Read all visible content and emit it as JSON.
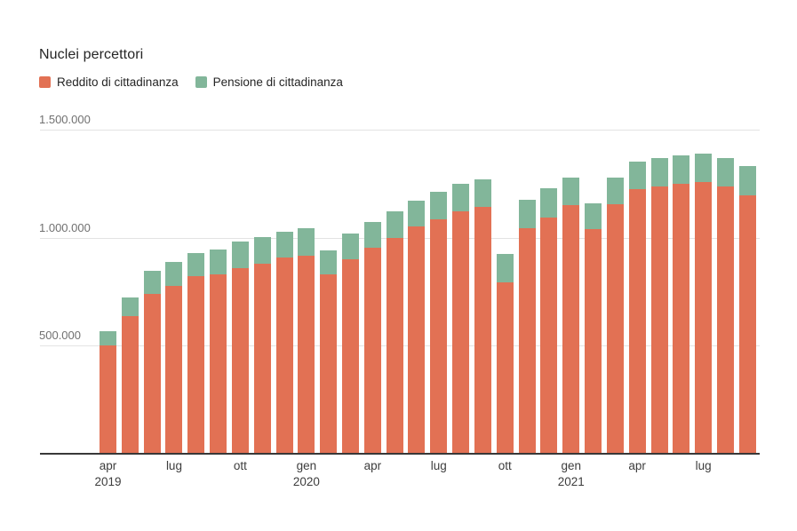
{
  "title": "Nuclei percettori",
  "legend": [
    {
      "label": "Reddito di cittadinanza",
      "color": "#E27154"
    },
    {
      "label": "Pensione di cittadinanza",
      "color": "#82B69A"
    }
  ],
  "colors": {
    "rdc": "#E27154",
    "pdc": "#82B69A",
    "gridline": "#e3e3e3",
    "axis_line": "#383838",
    "y_label": "#707070",
    "x_label": "#3d3d3d"
  },
  "y_axis": {
    "ticks": [
      {
        "value": 1500000,
        "label": "1.500.000"
      },
      {
        "value": 1000000,
        "label": "1.000.000"
      },
      {
        "value": 500000,
        "label": "500.000"
      }
    ]
  },
  "chart_data": {
    "type": "bar",
    "stacked": true,
    "title": "Nuclei percettori",
    "xlabel": "",
    "ylabel": "",
    "ylim": [
      0,
      1500000
    ],
    "grid": "horizontal",
    "legend_position": "top-left",
    "categories": [
      "apr 2019",
      "mag 2019",
      "giu 2019",
      "lug 2019",
      "ago 2019",
      "set 2019",
      "ott 2019",
      "nov 2019",
      "dic 2019",
      "gen 2020",
      "feb 2020",
      "mar 2020",
      "apr 2020",
      "mag 2020",
      "giu 2020",
      "lug 2020",
      "ago 2020",
      "set 2020",
      "ott 2020",
      "nov 2020",
      "dic 2020",
      "gen 2021",
      "feb 2021",
      "mar 2021",
      "apr 2021",
      "mag 2021",
      "giu 2021",
      "lug 2021",
      "ago 2021",
      "set 2021"
    ],
    "series": [
      {
        "name": "Reddito di cittadinanza",
        "color": "#E27154",
        "values": [
          502000,
          639000,
          740000,
          775000,
          820000,
          829000,
          860000,
          878000,
          907000,
          917000,
          831000,
          900000,
          955000,
          1000000,
          1051000,
          1083000,
          1124000,
          1143000,
          792000,
          1042000,
          1095000,
          1150000,
          1038000,
          1154000,
          1223000,
          1237000,
          1248000,
          1257000,
          1237000,
          1195000
        ]
      },
      {
        "name": "Pensione di cittadinanza",
        "color": "#82B69A",
        "values": [
          66000,
          83000,
          105000,
          111000,
          108000,
          118000,
          124000,
          126000,
          122000,
          125000,
          110000,
          120000,
          117000,
          120000,
          120000,
          129000,
          126000,
          128000,
          131000,
          133000,
          134000,
          128000,
          121000,
          124000,
          128000,
          130000,
          133000,
          133000,
          133000,
          137000
        ]
      }
    ],
    "x_ticks": [
      {
        "index": 0,
        "label": "apr",
        "year": "2019"
      },
      {
        "index": 3,
        "label": "lug",
        "year": ""
      },
      {
        "index": 6,
        "label": "ott",
        "year": ""
      },
      {
        "index": 9,
        "label": "gen",
        "year": "2020"
      },
      {
        "index": 12,
        "label": "apr",
        "year": ""
      },
      {
        "index": 15,
        "label": "lug",
        "year": ""
      },
      {
        "index": 18,
        "label": "ott",
        "year": ""
      },
      {
        "index": 21,
        "label": "gen",
        "year": "2021"
      },
      {
        "index": 24,
        "label": "apr",
        "year": ""
      },
      {
        "index": 27,
        "label": "lug",
        "year": ""
      }
    ]
  }
}
